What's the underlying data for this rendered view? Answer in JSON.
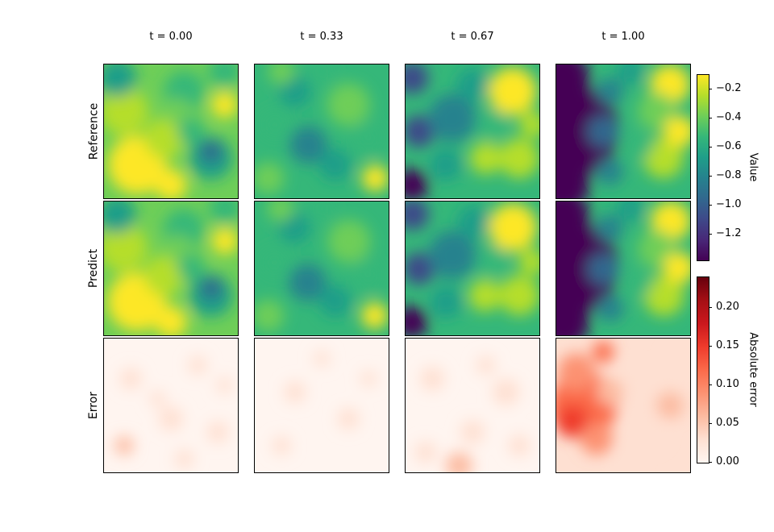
{
  "chart_data": {
    "type": "heatmap",
    "columns": [
      "t = 0.00",
      "t = 0.33",
      "t = 0.67",
      "t = 1.00"
    ],
    "rows": [
      "Reference",
      "Predict",
      "Error"
    ],
    "value_colorbar": {
      "label": "Value",
      "colormap": "viridis",
      "range": [
        -1.38,
        -0.1
      ],
      "ticks": [
        -1.2,
        -1.0,
        -0.8,
        -0.6,
        -0.4,
        -0.2
      ],
      "tick_labels": [
        "−1.2",
        "−1.0",
        "−0.8",
        "−0.6",
        "−0.4",
        "−0.2"
      ]
    },
    "error_colorbar": {
      "label": "Absolute error",
      "colormap": "reds",
      "range": [
        0.0,
        0.24
      ],
      "ticks": [
        0.0,
        0.05,
        0.1,
        0.15,
        0.2
      ],
      "tick_labels": [
        "0.00",
        "0.05",
        "0.10",
        "0.15",
        "0.20"
      ]
    }
  }
}
